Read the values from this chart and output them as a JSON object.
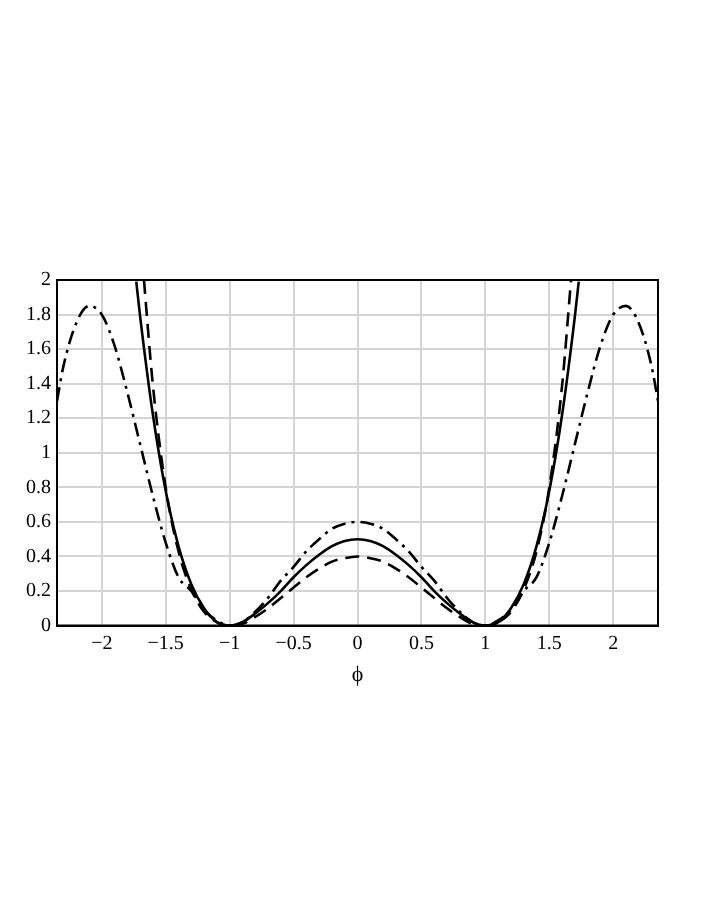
{
  "chart_data": {
    "type": "line",
    "xlabel": "ϕ",
    "xlim": [
      -2.35,
      2.35
    ],
    "ylim": [
      0,
      2
    ],
    "xticks": [
      {
        "value": -2,
        "label": "−2"
      },
      {
        "value": -1.5,
        "label": "−1.5"
      },
      {
        "value": -1,
        "label": "−1"
      },
      {
        "value": -0.5,
        "label": "−0.5"
      },
      0,
      0.5,
      1,
      1.5,
      2
    ],
    "yticks": [
      0,
      0.2,
      0.4,
      0.6,
      0.8,
      1,
      1.2,
      1.4,
      1.6,
      1.8,
      2
    ],
    "grid": true,
    "legend": false,
    "marker": "none",
    "series": [
      {
        "color": "#000000",
        "line_style": "solid",
        "x": [
          -1.73,
          -1.7,
          -1.6,
          -1.5,
          -1.4,
          -1.3,
          -1.2,
          -1.1,
          -1,
          -0.9,
          -0.8,
          -0.7,
          -0.6,
          -0.5,
          -0.4,
          -0.3,
          -0.2,
          -0.1,
          0,
          0.1,
          0.2,
          0.3,
          0.4,
          0.5,
          0.6,
          0.7,
          0.8,
          0.9,
          1,
          1.1,
          1.2,
          1.3,
          1.4,
          1.5,
          1.6,
          1.7,
          1.73
        ],
        "values": [
          1.99,
          1.79,
          1.22,
          0.78,
          0.46,
          0.24,
          0.1,
          0.02,
          0,
          0.02,
          0.07,
          0.13,
          0.2,
          0.28,
          0.35,
          0.41,
          0.46,
          0.49,
          0.5,
          0.49,
          0.46,
          0.41,
          0.35,
          0.28,
          0.2,
          0.13,
          0.07,
          0.02,
          0,
          0.02,
          0.1,
          0.24,
          0.46,
          0.78,
          1.22,
          1.79,
          1.99
        ]
      },
      {
        "color": "#000000",
        "line_style": "dashed",
        "x": [
          -1.67,
          -1.6,
          -1.5,
          -1.4,
          -1.3,
          -1.2,
          -1.1,
          -1,
          -0.9,
          -0.8,
          -0.7,
          -0.6,
          -0.5,
          -0.4,
          -0.3,
          -0.2,
          -0.1,
          0,
          0.1,
          0.2,
          0.3,
          0.4,
          0.5,
          0.6,
          0.7,
          0.8,
          0.9,
          1,
          1.1,
          1.2,
          1.3,
          1.4,
          1.5,
          1.6,
          1.67
        ],
        "values": [
          2,
          1.39,
          0.8,
          0.43,
          0.21,
          0.08,
          0.02,
          0,
          0.01,
          0.05,
          0.1,
          0.16,
          0.22,
          0.28,
          0.33,
          0.37,
          0.39,
          0.4,
          0.39,
          0.37,
          0.33,
          0.28,
          0.22,
          0.16,
          0.1,
          0.05,
          0.01,
          0,
          0.02,
          0.08,
          0.21,
          0.43,
          0.8,
          1.39,
          2
        ]
      },
      {
        "color": "#000000",
        "line_style": "dashdot",
        "x": [
          -2.35,
          -2.3,
          -2.2,
          -2.1,
          -2,
          -1.9,
          -1.8,
          -1.7,
          -1.6,
          -1.5,
          -1.4,
          -1.3,
          -1.2,
          -1.1,
          -1,
          -0.9,
          -0.8,
          -0.7,
          -0.6,
          -0.5,
          -0.4,
          -0.3,
          -0.2,
          -0.1,
          0,
          0.1,
          0.2,
          0.3,
          0.4,
          0.5,
          0.6,
          0.7,
          0.8,
          0.9,
          1,
          1.1,
          1.2,
          1.3,
          1.4,
          1.5,
          1.6,
          1.7,
          1.8,
          1.9,
          2,
          2.1,
          2.2,
          2.3,
          2.35
        ],
        "values": [
          1.3,
          1.5,
          1.75,
          1.85,
          1.8,
          1.62,
          1.35,
          1.05,
          0.75,
          0.48,
          0.28,
          0.2,
          0.09,
          0.03,
          0,
          0.02,
          0.08,
          0.16,
          0.26,
          0.34,
          0.43,
          0.5,
          0.56,
          0.59,
          0.6,
          0.59,
          0.56,
          0.5,
          0.43,
          0.34,
          0.26,
          0.16,
          0.08,
          0.02,
          0,
          0.03,
          0.09,
          0.2,
          0.28,
          0.48,
          0.75,
          1.05,
          1.35,
          1.62,
          1.8,
          1.85,
          1.75,
          1.5,
          1.3
        ]
      }
    ]
  }
}
